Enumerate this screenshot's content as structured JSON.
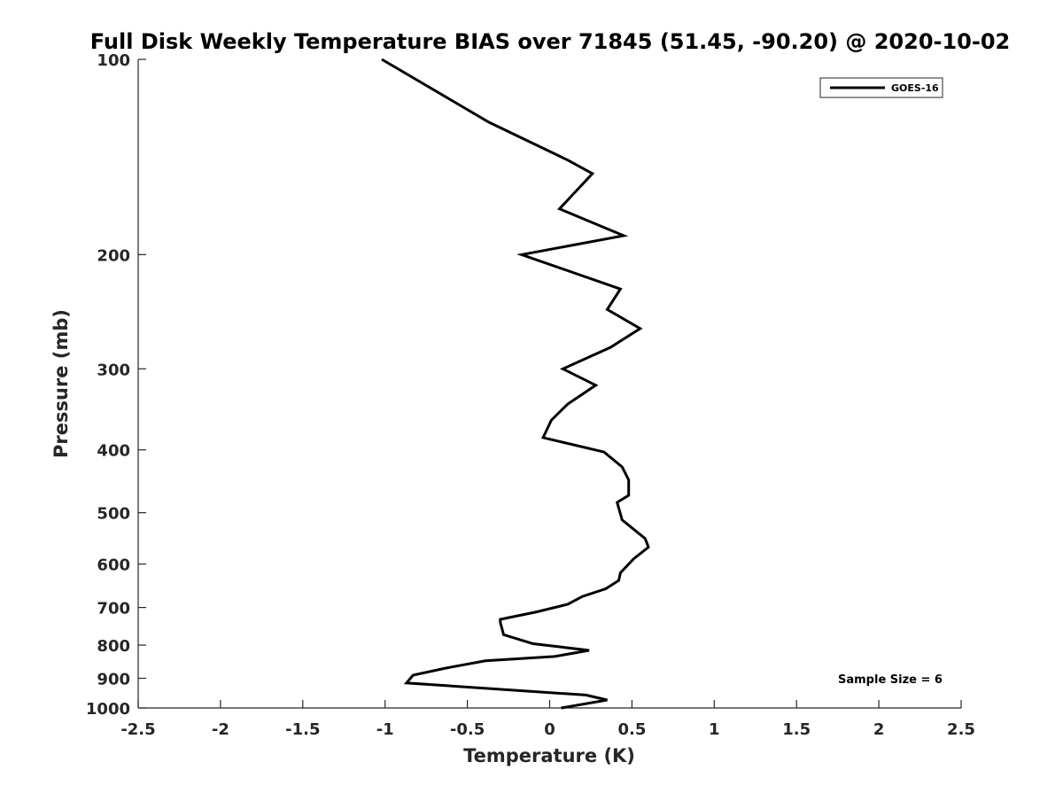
{
  "chart_data": {
    "type": "line",
    "title": "Full Disk Weekly Temperature BIAS over 71845 (51.45, -90.20) @ 2020-10-02",
    "xlabel": "Temperature (K)",
    "ylabel": "Pressure (mb)",
    "xlim": [
      -2.5,
      2.5
    ],
    "ylim": [
      100,
      1000
    ],
    "y_scale": "log",
    "y_reversed": true,
    "x_ticks": [
      -2.5,
      -2,
      -1.5,
      -1,
      -0.5,
      0,
      0.5,
      1,
      1.5,
      2,
      2.5
    ],
    "x_tick_labels": [
      "-2.5",
      "-2",
      "-1.5",
      "-1",
      "-0.5",
      "0",
      "0.5",
      "1",
      "1.5",
      "2",
      "2.5"
    ],
    "y_ticks": [
      100,
      200,
      300,
      400,
      500,
      600,
      700,
      800,
      900,
      1000
    ],
    "y_tick_labels": [
      "100",
      "200",
      "300",
      "400",
      "500",
      "600",
      "700",
      "800",
      "900",
      "1000"
    ],
    "grid": false,
    "legend_position": "top-right",
    "series": [
      {
        "name": "GOES-16",
        "color": "#000000",
        "points": [
          [
            -1.02,
            100
          ],
          [
            -0.37,
            125
          ],
          [
            0.11,
            143
          ],
          [
            0.26,
            150
          ],
          [
            0.06,
            170
          ],
          [
            0.45,
            187
          ],
          [
            -0.17,
            200
          ],
          [
            0.43,
            226
          ],
          [
            0.35,
            243
          ],
          [
            0.55,
            260
          ],
          [
            0.37,
            278
          ],
          [
            0.08,
            300
          ],
          [
            0.28,
            318
          ],
          [
            0.11,
            340
          ],
          [
            0.01,
            360
          ],
          [
            -0.04,
            383
          ],
          [
            0.33,
            403
          ],
          [
            0.44,
            425
          ],
          [
            0.48,
            445
          ],
          [
            0.48,
            470
          ],
          [
            0.41,
            482
          ],
          [
            0.44,
            513
          ],
          [
            0.58,
            548
          ],
          [
            0.6,
            565
          ],
          [
            0.51,
            589
          ],
          [
            0.43,
            619
          ],
          [
            0.42,
            636
          ],
          [
            0.34,
            655
          ],
          [
            0.2,
            673
          ],
          [
            0.11,
            692
          ],
          [
            -0.08,
            711
          ],
          [
            -0.3,
            730
          ],
          [
            -0.3,
            738
          ],
          [
            -0.28,
            771
          ],
          [
            -0.1,
            796
          ],
          [
            0.24,
            815
          ],
          [
            0.03,
            833
          ],
          [
            -0.39,
            846
          ],
          [
            -0.63,
            868
          ],
          [
            -0.83,
            890
          ],
          [
            -0.87,
            915
          ],
          [
            0.22,
            955
          ],
          [
            0.35,
            972
          ],
          [
            0.07,
            1000
          ]
        ]
      }
    ],
    "annotations": [
      "Sample Size = 6"
    ]
  }
}
